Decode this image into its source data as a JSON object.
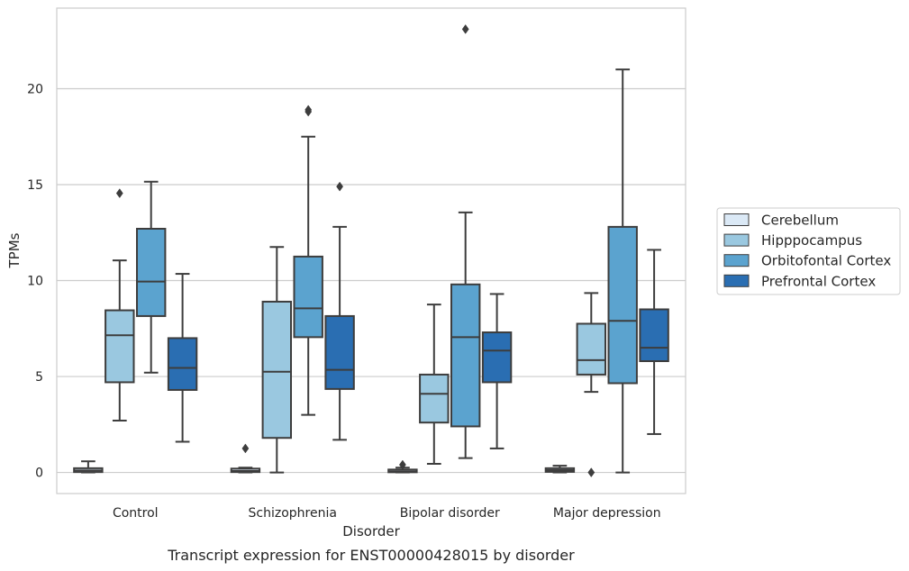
{
  "chart_data": {
    "type": "box",
    "xlabel": "Disorder",
    "ylabel": "TPMs",
    "caption": "Transcript expression for ENST00000428015 by disorder",
    "categories": [
      "Control",
      "Schizophrenia",
      "Bipolar disorder",
      "Major depression"
    ],
    "yticks": [
      0,
      5,
      10,
      15,
      20
    ],
    "ylim": [
      -1.1,
      24.2
    ],
    "grid": "horizontal",
    "legend_position": "right",
    "series": [
      {
        "name": "Cerebellum",
        "color": "#dbe9f6",
        "boxes": [
          {
            "whislo": 0,
            "q1": 0.02,
            "med": 0.1,
            "q3": 0.22,
            "whishi": 0.58,
            "fliers": []
          },
          {
            "whislo": 0,
            "q1": 0.02,
            "med": 0.08,
            "q3": 0.2,
            "whishi": 0.25,
            "fliers": [
              1.25
            ]
          },
          {
            "whislo": 0,
            "q1": 0.01,
            "med": 0.05,
            "q3": 0.15,
            "whishi": 0.25,
            "fliers": [
              0.4
            ]
          },
          {
            "whislo": 0,
            "q1": 0.03,
            "med": 0.12,
            "q3": 0.22,
            "whishi": 0.35,
            "fliers": []
          }
        ]
      },
      {
        "name": "Hipppocampus",
        "color": "#9ac8e0",
        "boxes": [
          {
            "whislo": 2.7,
            "q1": 4.7,
            "med": 7.15,
            "q3": 8.45,
            "whishi": 11.05,
            "fliers": [
              14.55
            ]
          },
          {
            "whislo": 0,
            "q1": 1.8,
            "med": 5.25,
            "q3": 8.9,
            "whishi": 11.75,
            "fliers": []
          },
          {
            "whislo": 0.45,
            "q1": 2.6,
            "med": 4.1,
            "q3": 5.1,
            "whishi": 8.75,
            "fliers": []
          },
          {
            "whislo": 4.2,
            "q1": 5.1,
            "med": 5.85,
            "q3": 7.75,
            "whishi": 9.35,
            "fliers": [
              0
            ]
          }
        ]
      },
      {
        "name": "Orbitofontal Cortex",
        "color": "#5ba3cf",
        "boxes": [
          {
            "whislo": 5.2,
            "q1": 8.15,
            "med": 9.95,
            "q3": 12.7,
            "whishi": 15.15,
            "fliers": []
          },
          {
            "whislo": 3.0,
            "q1": 7.05,
            "med": 8.55,
            "q3": 11.25,
            "whishi": 17.5,
            "fliers": [
              18.8,
              18.9
            ]
          },
          {
            "whislo": 0.75,
            "q1": 2.4,
            "med": 7.05,
            "q3": 9.8,
            "whishi": 13.55,
            "fliers": [
              23.1
            ]
          },
          {
            "whislo": 0,
            "q1": 4.65,
            "med": 7.9,
            "q3": 12.8,
            "whishi": 21.0,
            "fliers": []
          }
        ]
      },
      {
        "name": "Prefrontal Cortex",
        "color": "#2a6eb2",
        "boxes": [
          {
            "whislo": 1.6,
            "q1": 4.3,
            "med": 5.45,
            "q3": 7.0,
            "whishi": 10.35,
            "fliers": []
          },
          {
            "whislo": 1.7,
            "q1": 4.35,
            "med": 5.35,
            "q3": 8.15,
            "whishi": 12.8,
            "fliers": [
              14.9
            ]
          },
          {
            "whislo": 1.25,
            "q1": 4.7,
            "med": 6.35,
            "q3": 7.3,
            "whishi": 9.3,
            "fliers": []
          },
          {
            "whislo": 2.0,
            "q1": 5.8,
            "med": 6.5,
            "q3": 8.5,
            "whishi": 11.6,
            "fliers": []
          }
        ]
      }
    ]
  }
}
